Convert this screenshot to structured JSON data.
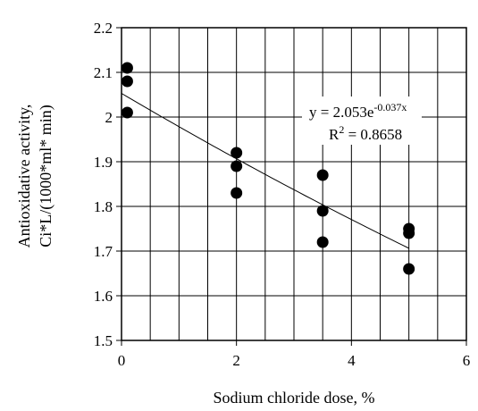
{
  "chart_data": {
    "type": "scatter",
    "xlabel": "Sodium chloride dose, %",
    "ylabel_lines": [
      "Antioxidative  activity,",
      "Ci*L/(1000*ml* min)"
    ],
    "xlim": [
      0,
      6
    ],
    "ylim": [
      1.5,
      2.2
    ],
    "x_ticks": [
      "0",
      "2",
      "4",
      "6"
    ],
    "y_ticks": [
      "1.5",
      "1.6",
      "1.7",
      "1.8",
      "1.9",
      "2",
      "2.1",
      "2.2"
    ],
    "x_tick_values": [
      0,
      2,
      4,
      6
    ],
    "y_tick_values": [
      1.5,
      1.6,
      1.7,
      1.8,
      1.9,
      2.0,
      2.1,
      2.2
    ],
    "grid": true,
    "points": [
      {
        "x": 0.1,
        "y": 2.11
      },
      {
        "x": 0.1,
        "y": 2.08
      },
      {
        "x": 0.1,
        "y": 2.01
      },
      {
        "x": 2.0,
        "y": 1.92
      },
      {
        "x": 2.0,
        "y": 1.89
      },
      {
        "x": 2.0,
        "y": 1.83
      },
      {
        "x": 3.5,
        "y": 1.87
      },
      {
        "x": 3.5,
        "y": 1.79
      },
      {
        "x": 3.5,
        "y": 1.72
      },
      {
        "x": 5.0,
        "y": 1.75
      },
      {
        "x": 5.0,
        "y": 1.74
      },
      {
        "x": 5.0,
        "y": 1.66
      }
    ],
    "trendline": {
      "type": "exponential",
      "a": 2.053,
      "b": -0.037,
      "x_range": [
        0,
        5
      ],
      "equation_main": "y = 2.053e",
      "equation_exp": "-0.037x",
      "r2_main": "R",
      "r2_sup": "2",
      "r2_value": " = 0.8658"
    }
  }
}
